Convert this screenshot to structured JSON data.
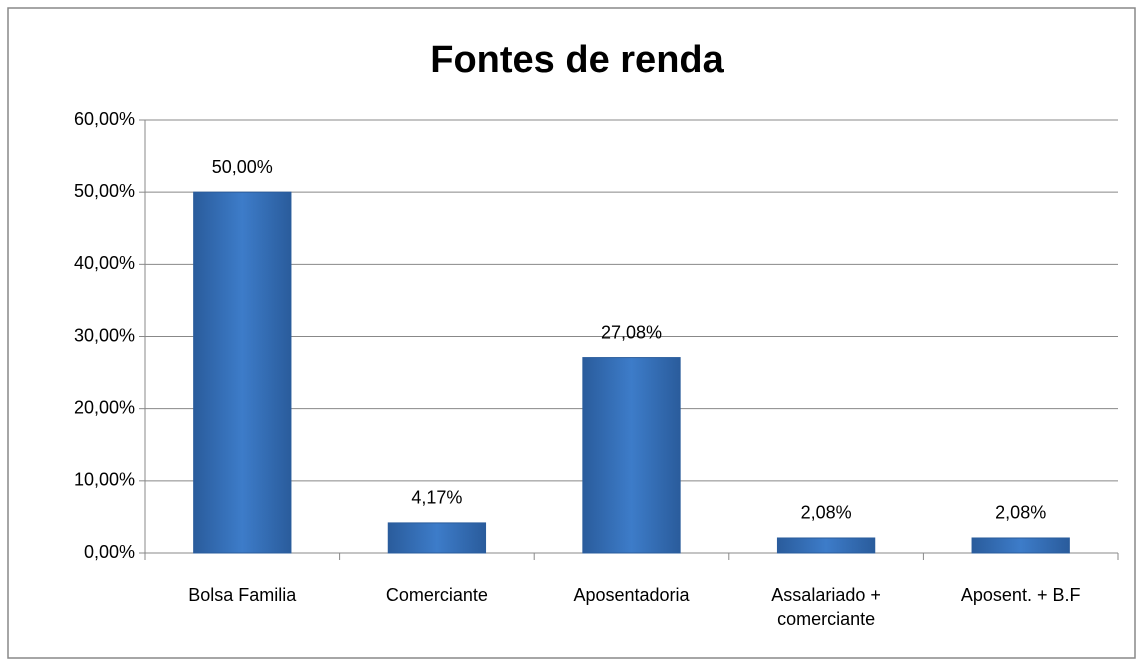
{
  "chart_data": {
    "type": "bar",
    "title": "Fontes de renda",
    "categories": [
      "Bolsa Familia",
      "Comerciante",
      "Aposentadoria",
      "Assalariado + comerciante",
      "Aposent. + B.F"
    ],
    "values": [
      50,
      4.17,
      27.08,
      2.08,
      2.08
    ],
    "value_labels": [
      "50,00%",
      "4,17%",
      "27,08%",
      "2,08%",
      "2,08%"
    ],
    "color": "#3d7cc9",
    "ylim": [
      0,
      60
    ],
    "yticks": [
      {
        "value": 0,
        "label": "0,00%"
      },
      {
        "value": 10,
        "label": "10,00%"
      },
      {
        "value": 20,
        "label": "20,00%"
      },
      {
        "value": 30,
        "label": "30,00%"
      },
      {
        "value": 40,
        "label": "40,00%"
      },
      {
        "value": 50,
        "label": "50,00%"
      },
      {
        "value": 60,
        "label": "60,00%"
      }
    ],
    "grid": true
  }
}
